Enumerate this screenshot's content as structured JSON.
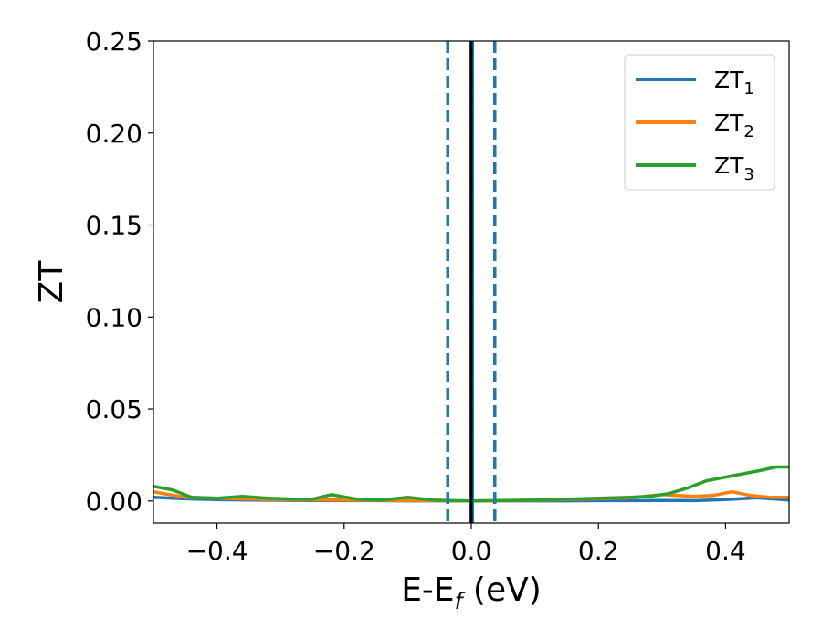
{
  "chart_data": {
    "type": "line",
    "xlabel": "E-E",
    "xlabel_sub": "f",
    "xlabel_unit": " (eV)",
    "ylabel": "ZT",
    "xlim": [
      -0.5,
      0.5
    ],
    "ylim": [
      -0.012,
      0.25
    ],
    "xticks": [
      -0.4,
      -0.2,
      0.0,
      0.2,
      0.4
    ],
    "xtick_labels": [
      "−0.4",
      "−0.2",
      "0.0",
      "0.2",
      "0.4"
    ],
    "yticks": [
      0.0,
      0.05,
      0.1,
      0.15,
      0.2,
      0.25
    ],
    "ytick_labels": [
      "0.00",
      "0.05",
      "0.10",
      "0.15",
      "0.20",
      "0.25"
    ],
    "grid": false,
    "legend_position": "top-right",
    "vlines": [
      {
        "x": -0.037,
        "style": "dashed",
        "color": "#1f77b4"
      },
      {
        "x": 0.037,
        "style": "dashed",
        "color": "#1f77b4"
      },
      {
        "x": 0.0,
        "style": "solid",
        "color": "#1f77b4"
      },
      {
        "x": 0.0,
        "style": "solid",
        "color": "#000000"
      }
    ],
    "series": [
      {
        "name": "ZT",
        "sub": "1",
        "color": "#1f77b4",
        "x": [
          -0.5,
          -0.45,
          -0.4,
          -0.35,
          -0.3,
          -0.25,
          -0.2,
          -0.15,
          -0.1,
          -0.05,
          0.0,
          0.05,
          0.1,
          0.15,
          0.2,
          0.25,
          0.3,
          0.35,
          0.4,
          0.45,
          0.5
        ],
        "y": [
          0.002,
          0.0012,
          0.0008,
          0.0005,
          0.0004,
          0.0003,
          0.0002,
          0.0002,
          0.0001,
          0.0001,
          0.0,
          0.0001,
          0.0001,
          0.0001,
          0.0002,
          0.0002,
          0.0003,
          0.0002,
          0.0008,
          0.0018,
          0.0005
        ]
      },
      {
        "name": "ZT",
        "sub": "2",
        "color": "#ff7f0e",
        "x": [
          -0.5,
          -0.45,
          -0.4,
          -0.35,
          -0.3,
          -0.25,
          -0.2,
          -0.15,
          -0.1,
          -0.05,
          0.0,
          0.05,
          0.1,
          0.15,
          0.2,
          0.25,
          0.3,
          0.35,
          0.38,
          0.41,
          0.44,
          0.47,
          0.5
        ],
        "y": [
          0.005,
          0.002,
          0.0015,
          0.001,
          0.0008,
          0.0006,
          0.0005,
          0.0004,
          0.0003,
          0.0002,
          0.0,
          0.0002,
          0.0004,
          0.0008,
          0.0012,
          0.0018,
          0.0035,
          0.0025,
          0.003,
          0.005,
          0.003,
          0.002,
          0.002
        ]
      },
      {
        "name": "ZT",
        "sub": "3",
        "color": "#2ca02c",
        "x": [
          -0.5,
          -0.47,
          -0.44,
          -0.4,
          -0.36,
          -0.32,
          -0.28,
          -0.25,
          -0.22,
          -0.18,
          -0.14,
          -0.1,
          -0.06,
          -0.03,
          0.0,
          0.05,
          0.1,
          0.15,
          0.2,
          0.25,
          0.28,
          0.31,
          0.34,
          0.37,
          0.4,
          0.43,
          0.46,
          0.48,
          0.5
        ],
        "y": [
          0.008,
          0.006,
          0.002,
          0.0015,
          0.0025,
          0.0015,
          0.001,
          0.001,
          0.0035,
          0.001,
          0.0005,
          0.002,
          0.0005,
          0.0002,
          0.0,
          0.0003,
          0.0005,
          0.001,
          0.0015,
          0.002,
          0.0025,
          0.004,
          0.007,
          0.011,
          0.013,
          0.015,
          0.017,
          0.0185,
          0.0185
        ]
      }
    ]
  }
}
